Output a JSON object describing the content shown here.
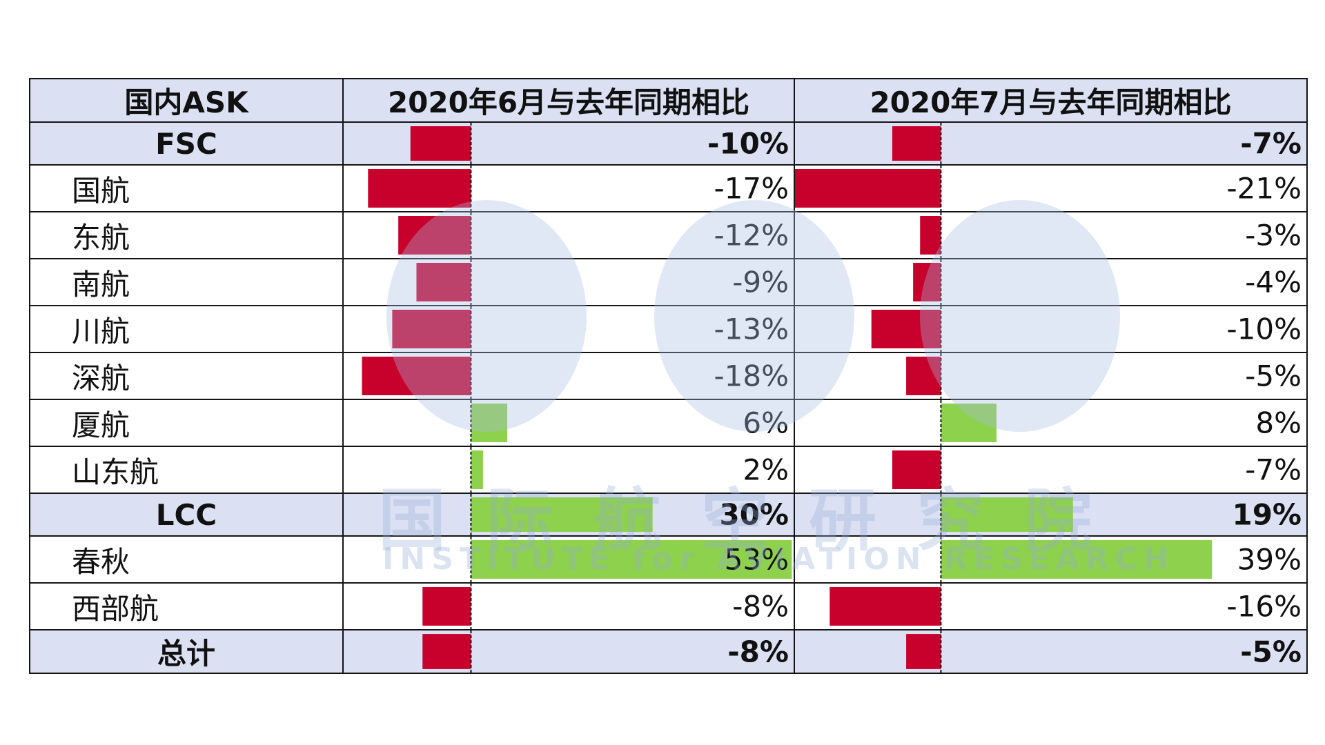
{
  "table": {
    "header": {
      "label": "国内ASK",
      "jun": "2020年6月与去年同期相比",
      "jul": "2020年7月与去年同期相比"
    }
  },
  "watermark": {
    "cn": "国际航空研究院",
    "en": "INSTITUTE for AVIATION RESEARCH"
  },
  "colors": {
    "negative": "#c8002c",
    "positive": "#8ed14c",
    "header_bg": "#dbe1f3"
  },
  "chart_data": {
    "type": "table",
    "series": [
      {
        "name": "2020年6月与去年同期相比",
        "unit": "%"
      },
      {
        "name": "2020年7月与去年同期相比",
        "unit": "%"
      }
    ],
    "rows": [
      {
        "label": "FSC",
        "group": true,
        "jun": -10,
        "jun_label": "-10%",
        "jul": -7,
        "jul_label": "-7%"
      },
      {
        "label": "国航",
        "group": false,
        "jun": -17,
        "jun_label": "-17%",
        "jul": -21,
        "jul_label": "-21%"
      },
      {
        "label": "东航",
        "group": false,
        "jun": -12,
        "jun_label": "-12%",
        "jul": -3,
        "jul_label": "-3%"
      },
      {
        "label": "南航",
        "group": false,
        "jun": -9,
        "jun_label": "-9%",
        "jul": -4,
        "jul_label": "-4%"
      },
      {
        "label": "川航",
        "group": false,
        "jun": -13,
        "jun_label": "-13%",
        "jul": -10,
        "jul_label": "-10%"
      },
      {
        "label": "深航",
        "group": false,
        "jun": -18,
        "jun_label": "-18%",
        "jul": -5,
        "jul_label": "-5%"
      },
      {
        "label": "厦航",
        "group": false,
        "jun": 6,
        "jun_label": "6%",
        "jul": 8,
        "jul_label": "8%"
      },
      {
        "label": "山东航",
        "group": false,
        "jun": 2,
        "jun_label": "2%",
        "jul": -7,
        "jul_label": "-7%"
      },
      {
        "label": "LCC",
        "group": true,
        "jun": 30,
        "jun_label": "30%",
        "jul": 19,
        "jul_label": "19%"
      },
      {
        "label": "春秋",
        "group": false,
        "jun": 53,
        "jun_label": "53%",
        "jul": 39,
        "jul_label": "39%"
      },
      {
        "label": "西部航",
        "group": false,
        "jun": -8,
        "jun_label": "-8%",
        "jul": -16,
        "jul_label": "-16%"
      },
      {
        "label": "总计",
        "group": true,
        "jun": -8,
        "jun_label": "-8%",
        "jul": -5,
        "jul_label": "-5%"
      }
    ]
  }
}
